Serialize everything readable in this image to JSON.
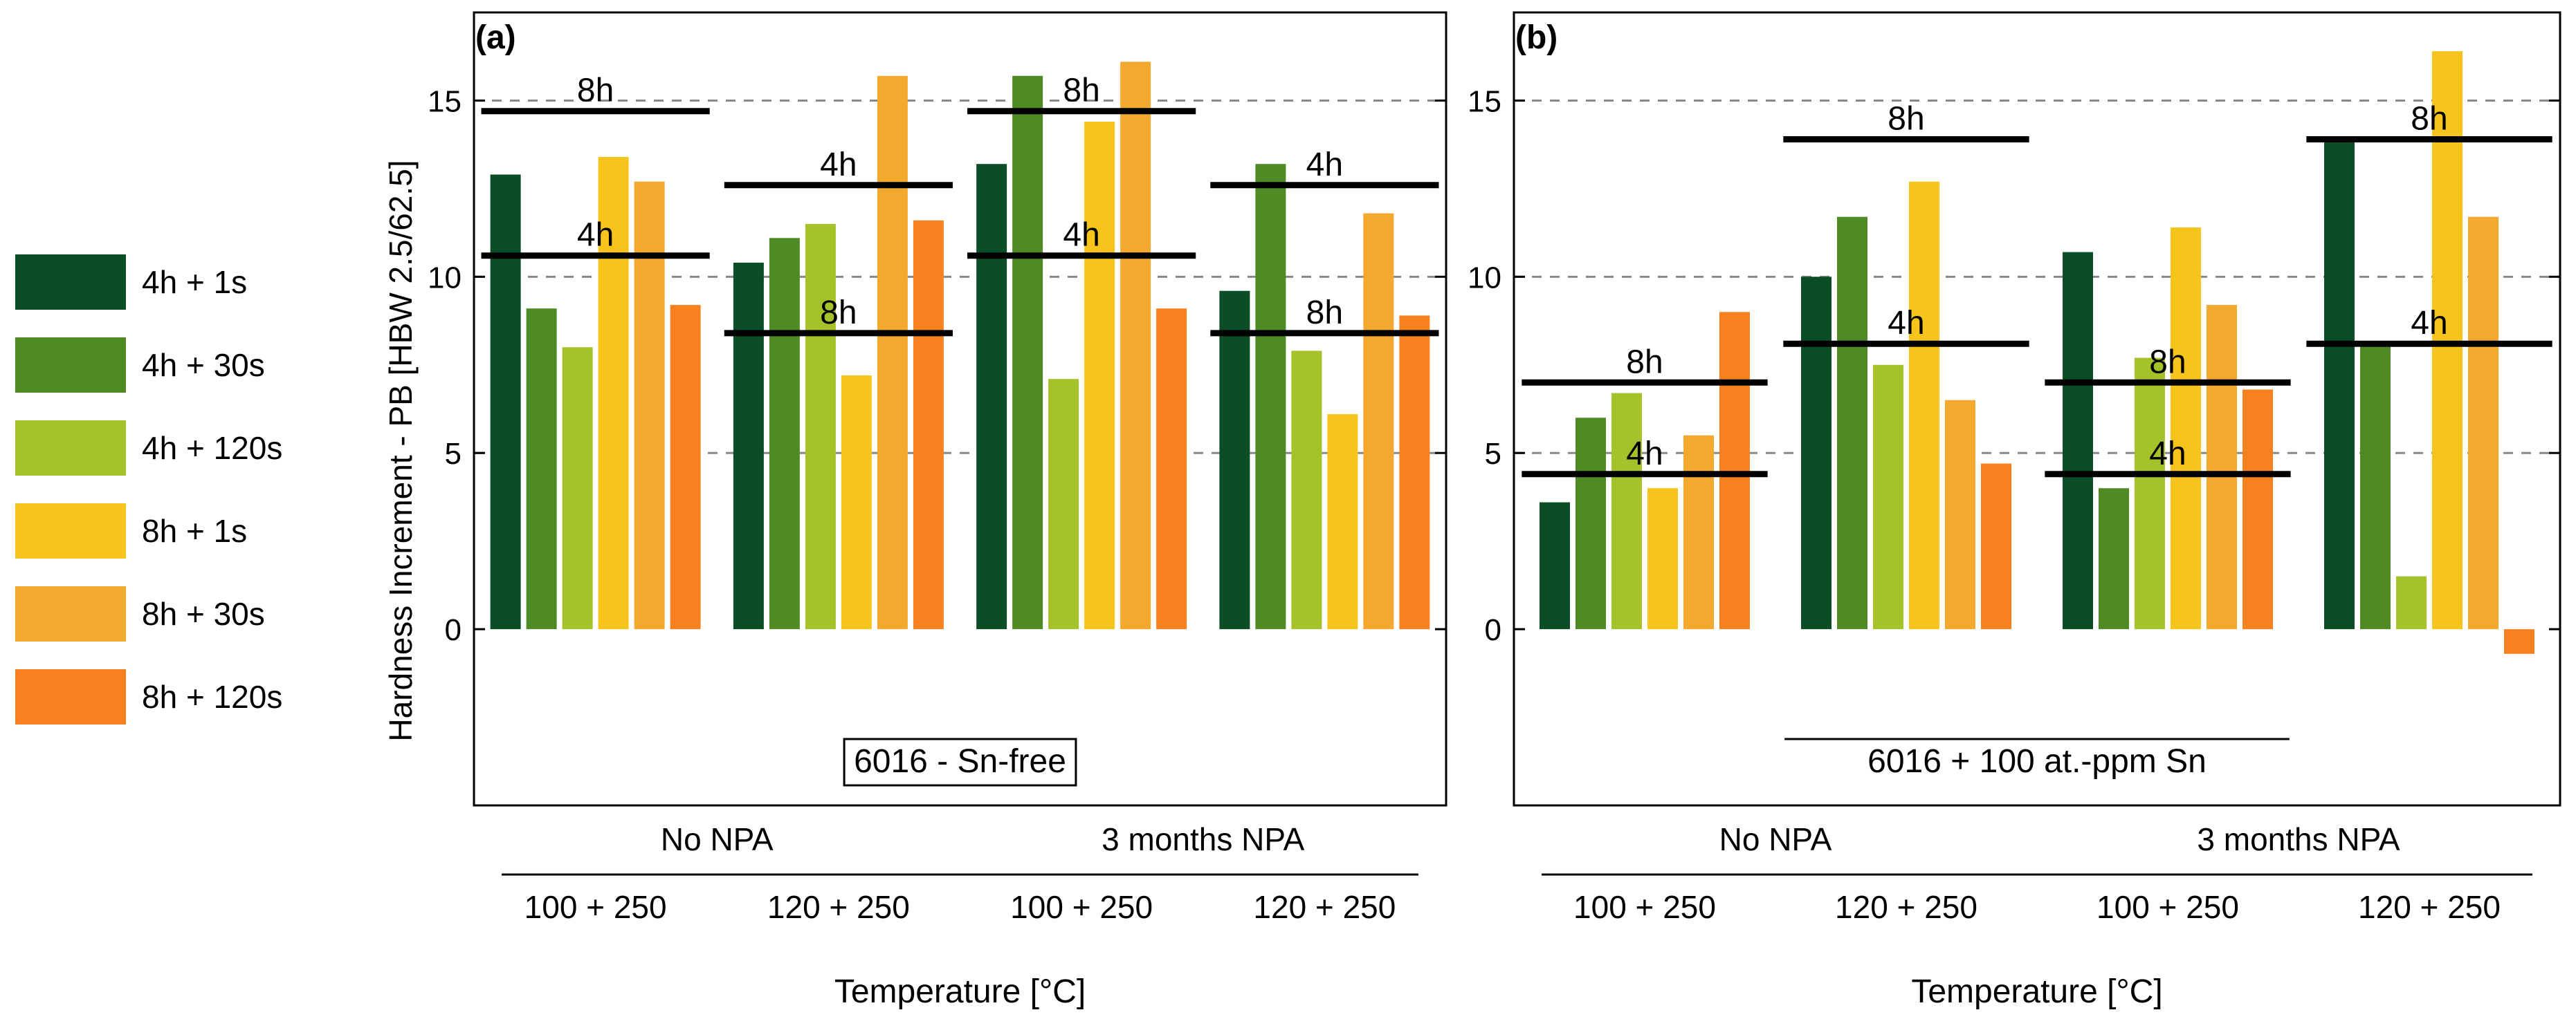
{
  "chart_data": {
    "type": "bar",
    "legend": {
      "placement": "left",
      "entries": [
        {
          "name": "4h + 1s",
          "color": "#0b4d24"
        },
        {
          "name": "4h + 30s",
          "color": "#4e8b24"
        },
        {
          "name": "4h + 120s",
          "color": "#a6c22a"
        },
        {
          "name": "8h + 1s",
          "color": "#f6c41a"
        },
        {
          "name": "8h + 30s",
          "color": "#f3a92e"
        },
        {
          "name": "8h + 120s",
          "color": "#f7801f"
        }
      ]
    },
    "ylabel": "Hardness Increment - PB [HBW 2.5/62.5]",
    "ylim": [
      -5,
      17.5
    ],
    "yticks": [
      "0",
      "5",
      "10",
      "15"
    ],
    "dashed_gridlines_at": [
      5,
      10,
      15
    ],
    "panels": [
      {
        "label": "(a)",
        "title": "6016 - Sn-free",
        "title_boxed": true,
        "xlabel": "Temperature [°C]",
        "categories": [
          "100 + 250",
          "120 + 250",
          "100 + 250",
          "120 + 250"
        ],
        "groups": [
          "No NPA",
          "3 months NPA"
        ],
        "series": [
          {
            "name": "4h + 1s",
            "values": [
              12.9,
              10.4,
              13.2,
              9.6
            ]
          },
          {
            "name": "4h + 30s",
            "values": [
              9.1,
              11.1,
              15.7,
              13.2
            ]
          },
          {
            "name": "4h + 120s",
            "values": [
              8.0,
              11.5,
              7.1,
              7.9
            ]
          },
          {
            "name": "8h + 1s",
            "values": [
              13.4,
              7.2,
              14.4,
              6.1
            ]
          },
          {
            "name": "8h + 30s",
            "values": [
              12.7,
              15.7,
              16.1,
              11.8
            ]
          },
          {
            "name": "8h + 120s",
            "values": [
              9.2,
              11.6,
              9.1,
              8.9
            ]
          }
        ],
        "reference_lines": [
          {
            "label": "8h",
            "value": 14.7,
            "category": 0
          },
          {
            "label": "4h",
            "value": 10.6,
            "category": 0
          },
          {
            "label": "4h",
            "value": 12.6,
            "category": 1
          },
          {
            "label": "8h",
            "value": 8.4,
            "category": 1
          },
          {
            "label": "8h",
            "value": 14.7,
            "category": 2
          },
          {
            "label": "4h",
            "value": 10.6,
            "category": 2
          },
          {
            "label": "4h",
            "value": 12.6,
            "category": 3
          },
          {
            "label": "8h",
            "value": 8.4,
            "category": 3
          }
        ]
      },
      {
        "label": "(b)",
        "title": "6016 + 100 at.-ppm Sn",
        "title_boxed": false,
        "xlabel": "Temperature [°C]",
        "categories": [
          "100 + 250",
          "120 + 250",
          "100 + 250",
          "120 + 250"
        ],
        "groups": [
          "No NPA",
          "3 months NPA"
        ],
        "series": [
          {
            "name": "4h + 1s",
            "values": [
              3.6,
              10.0,
              10.7,
              13.9
            ]
          },
          {
            "name": "4h + 30s",
            "values": [
              6.0,
              11.7,
              4.0,
              8.1
            ]
          },
          {
            "name": "4h + 120s",
            "values": [
              6.7,
              7.5,
              7.7,
              1.5
            ]
          },
          {
            "name": "8h + 1s",
            "values": [
              4.0,
              12.7,
              11.4,
              16.4
            ]
          },
          {
            "name": "8h + 30s",
            "values": [
              5.5,
              6.5,
              9.2,
              11.7
            ]
          },
          {
            "name": "8h + 120s",
            "values": [
              9.0,
              4.7,
              6.8,
              -0.7
            ]
          }
        ],
        "reference_lines": [
          {
            "label": "8h",
            "value": 7.0,
            "category": 0
          },
          {
            "label": "4h",
            "value": 4.4,
            "category": 0
          },
          {
            "label": "8h",
            "value": 13.9,
            "category": 1
          },
          {
            "label": "4h",
            "value": 8.1,
            "category": 1
          },
          {
            "label": "8h",
            "value": 7.0,
            "category": 2
          },
          {
            "label": "4h",
            "value": 4.4,
            "category": 2
          },
          {
            "label": "8h",
            "value": 13.9,
            "category": 3
          },
          {
            "label": "4h",
            "value": 8.1,
            "category": 3
          }
        ]
      }
    ]
  }
}
